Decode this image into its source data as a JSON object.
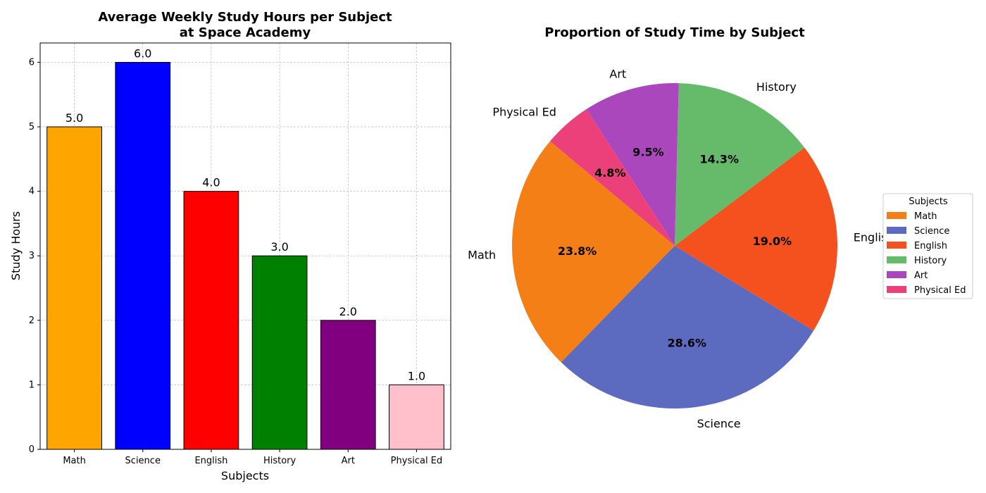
{
  "chart_data": [
    {
      "type": "bar",
      "title_lines": [
        "Average Weekly Study Hours per Subject",
        "at Space Academy"
      ],
      "xlabel": "Subjects",
      "ylabel": "Study Hours",
      "categories": [
        "Math",
        "Science",
        "English",
        "History",
        "Art",
        "Physical Ed"
      ],
      "values": [
        5,
        6,
        4,
        3,
        2,
        1
      ],
      "value_labels": [
        "5.0",
        "6.0",
        "4.0",
        "3.0",
        "2.0",
        "1.0"
      ],
      "colors": [
        "#ffa500",
        "#0000ff",
        "#ff0000",
        "#008000",
        "#800080",
        "#ffc0cb"
      ],
      "ylim": [
        0,
        6.3
      ],
      "yticks": [
        0,
        1,
        2,
        3,
        4,
        5,
        6
      ],
      "ytick_labels": [
        "0",
        "1",
        "2",
        "3",
        "4",
        "5",
        "6"
      ],
      "grid": true
    },
    {
      "type": "pie",
      "title": "Proportion of Study Time by Subject",
      "labels": [
        "Math",
        "Science",
        "English",
        "History",
        "Art",
        "Physical Ed"
      ],
      "values": [
        5,
        6,
        4,
        3,
        2,
        1
      ],
      "percent_labels": [
        "23.8%",
        "28.6%",
        "19.0%",
        "14.3%",
        "9.5%",
        "4.8%"
      ],
      "colors": [
        "#f57f17",
        "#5c6bc0",
        "#f4511e",
        "#66bb6a",
        "#ab47bc",
        "#ec407a"
      ],
      "start_angle_deg": 140,
      "direction": "counterclockwise",
      "legend_title": "Subjects",
      "legend_position": "center-right"
    }
  ]
}
